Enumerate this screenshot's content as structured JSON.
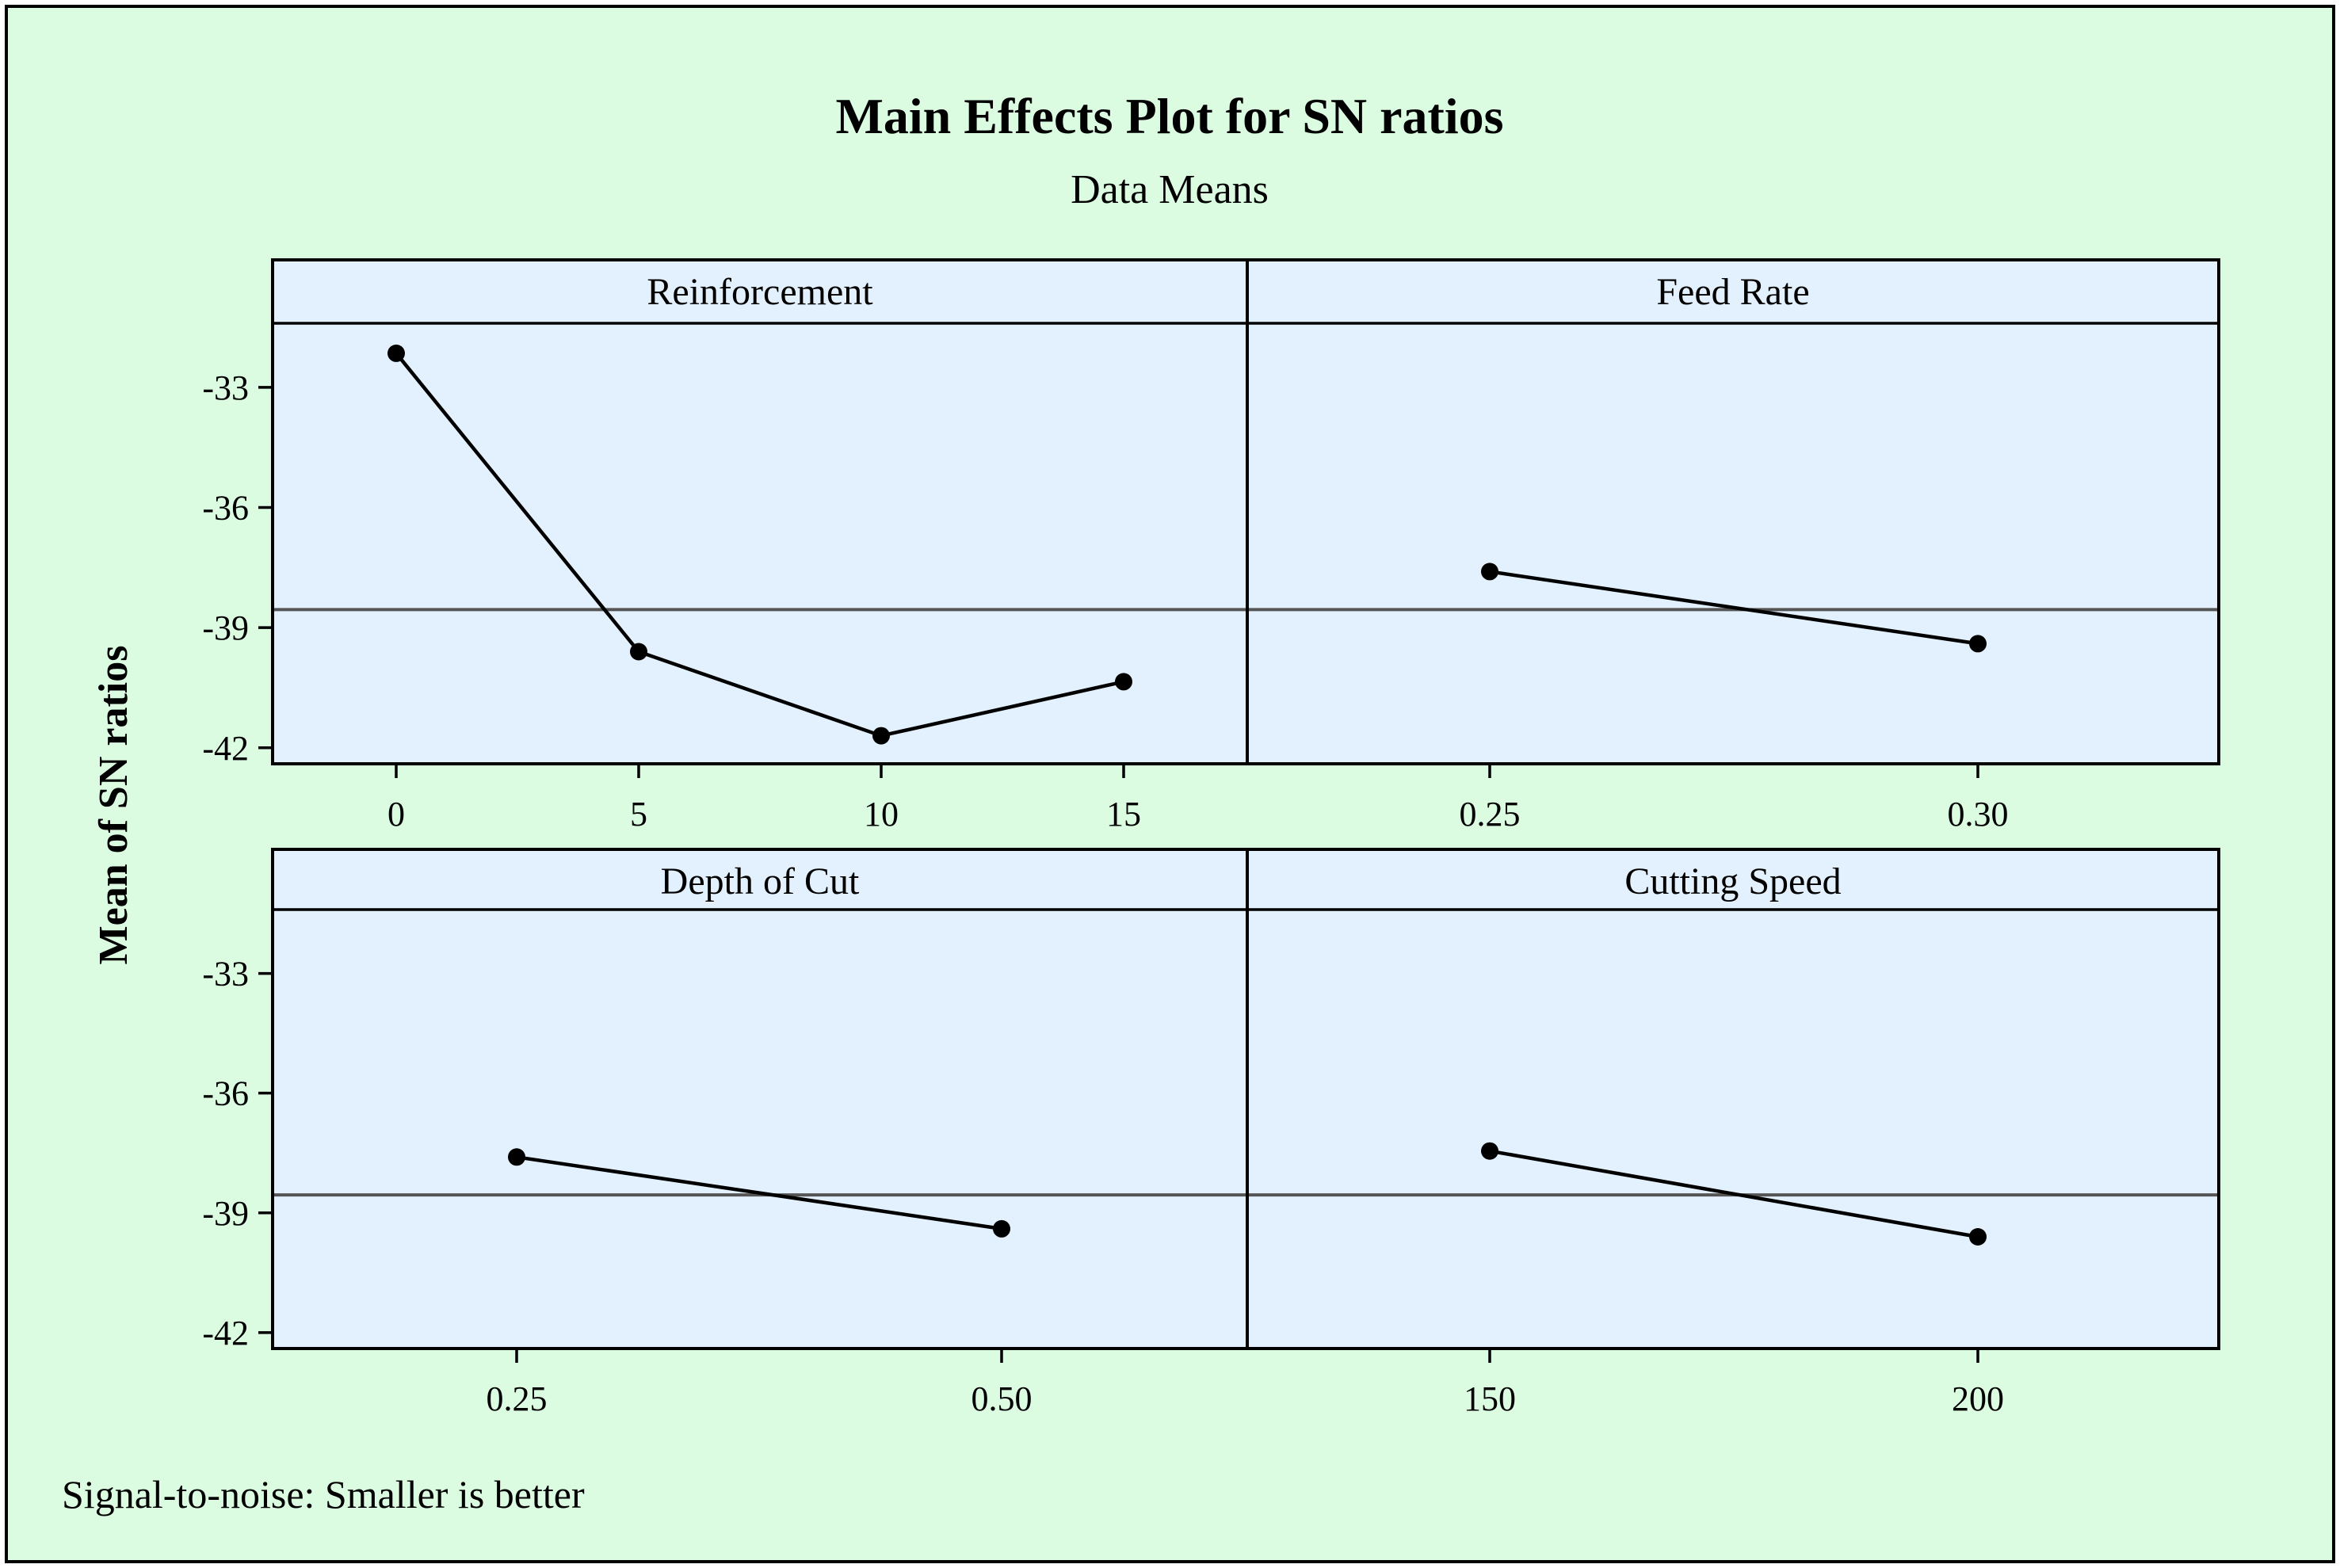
{
  "chart_data": {
    "type": "line",
    "title": "Main Effects Plot for SN ratios",
    "subtitle": "Data Means",
    "ylabel": "Mean of SN ratios",
    "footnote": "Signal-to-noise: Smaller is better",
    "ylim": [
      -42.4,
      -31.4
    ],
    "yticks": [
      -33,
      -36,
      -39,
      -42
    ],
    "ytick_labels": [
      "-33",
      "-36",
      "-39",
      "-42"
    ],
    "reference_mean": -38.55,
    "colors": {
      "background": "#dcfce2",
      "panel": "#e3f0fd",
      "series": "#000000",
      "reference": "#555555"
    },
    "panels": [
      {
        "name": "Reinforcement",
        "categories": [
          "0",
          "5",
          "10",
          "15"
        ],
        "values": [
          -32.15,
          -39.6,
          -41.7,
          -40.35
        ]
      },
      {
        "name": "Feed Rate",
        "categories": [
          "0.25",
          "0.30"
        ],
        "values": [
          -37.6,
          -39.4
        ]
      },
      {
        "name": "Depth of Cut",
        "categories": [
          "0.25",
          "0.50"
        ],
        "values": [
          -37.6,
          -39.4
        ]
      },
      {
        "name": "Cutting Speed",
        "categories": [
          "150",
          "200"
        ],
        "values": [
          -37.45,
          -39.6
        ]
      }
    ]
  }
}
